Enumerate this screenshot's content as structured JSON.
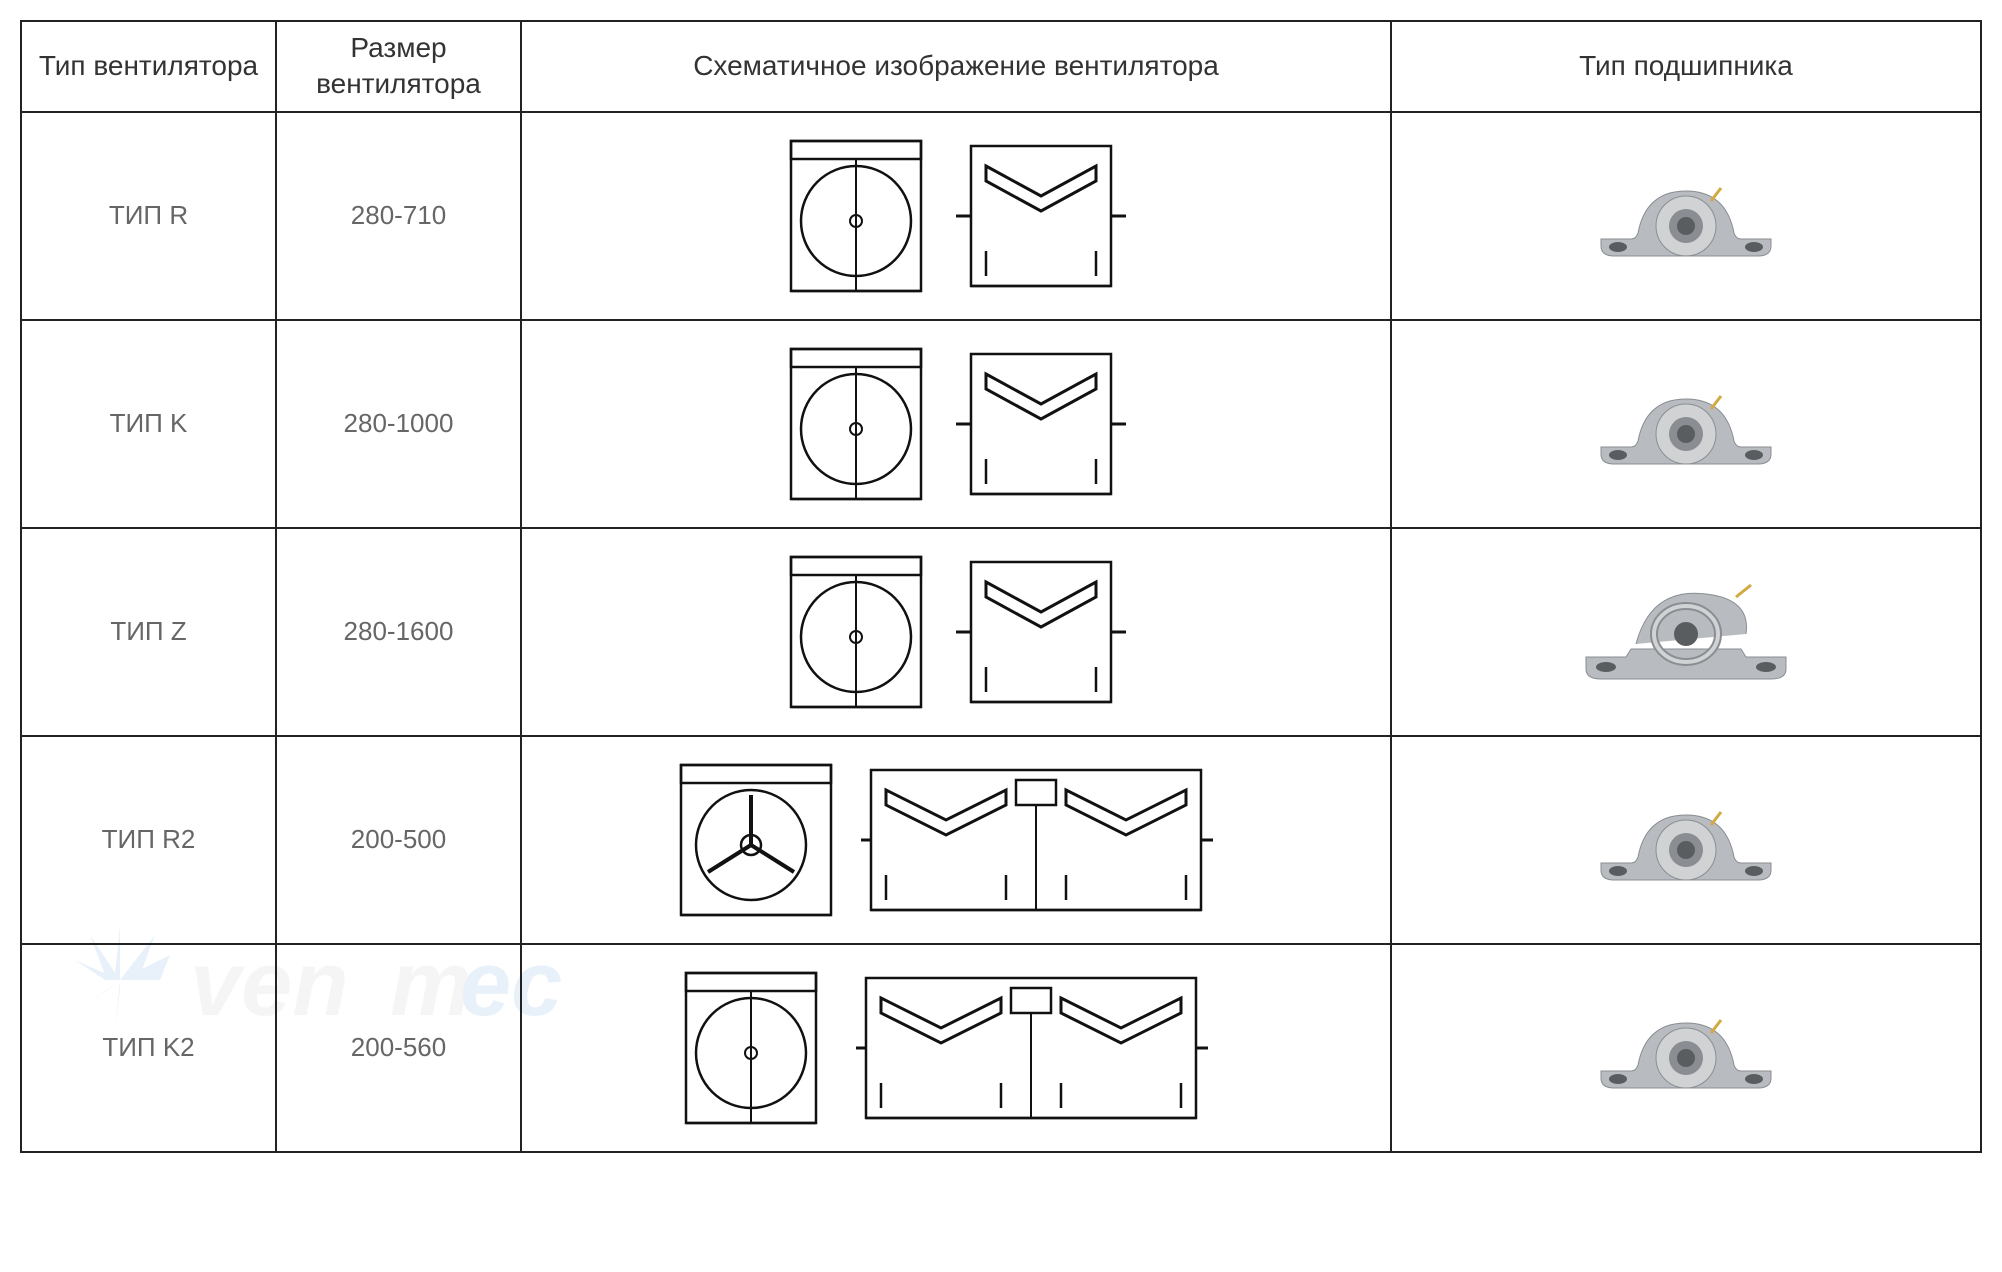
{
  "table": {
    "headers": [
      "Тип вентилятора",
      "Размер вентилятора",
      "Схематичное изображение вентилятора",
      "Тип подшипника"
    ],
    "rows": [
      {
        "type": "ТИП R",
        "size": "280-710",
        "schematic": "single",
        "bearing": "pillow"
      },
      {
        "type": "ТИП K",
        "size": "280-1000",
        "schematic": "single",
        "bearing": "pillow"
      },
      {
        "type": "ТИП Z",
        "size": "280-1600",
        "schematic": "single",
        "bearing": "split"
      },
      {
        "type": "ТИП R2",
        "size": "200-500",
        "schematic": "double_spoke",
        "bearing": "pillow"
      },
      {
        "type": "ТИП K2",
        "size": "200-560",
        "schematic": "double",
        "bearing": "pillow"
      }
    ]
  },
  "colors": {
    "border": "#222222",
    "text": "#666666",
    "header_text": "#333333",
    "schematic_stroke": "#111111",
    "schematic_fill": "#ffffff",
    "bearing_body": "#b8bcc0",
    "bearing_shadow": "#8a8e92",
    "bearing_ring": "#d0d2d4",
    "bearing_hole": "#5a5d60",
    "pin": "#d4a840"
  },
  "watermark": "venтec"
}
